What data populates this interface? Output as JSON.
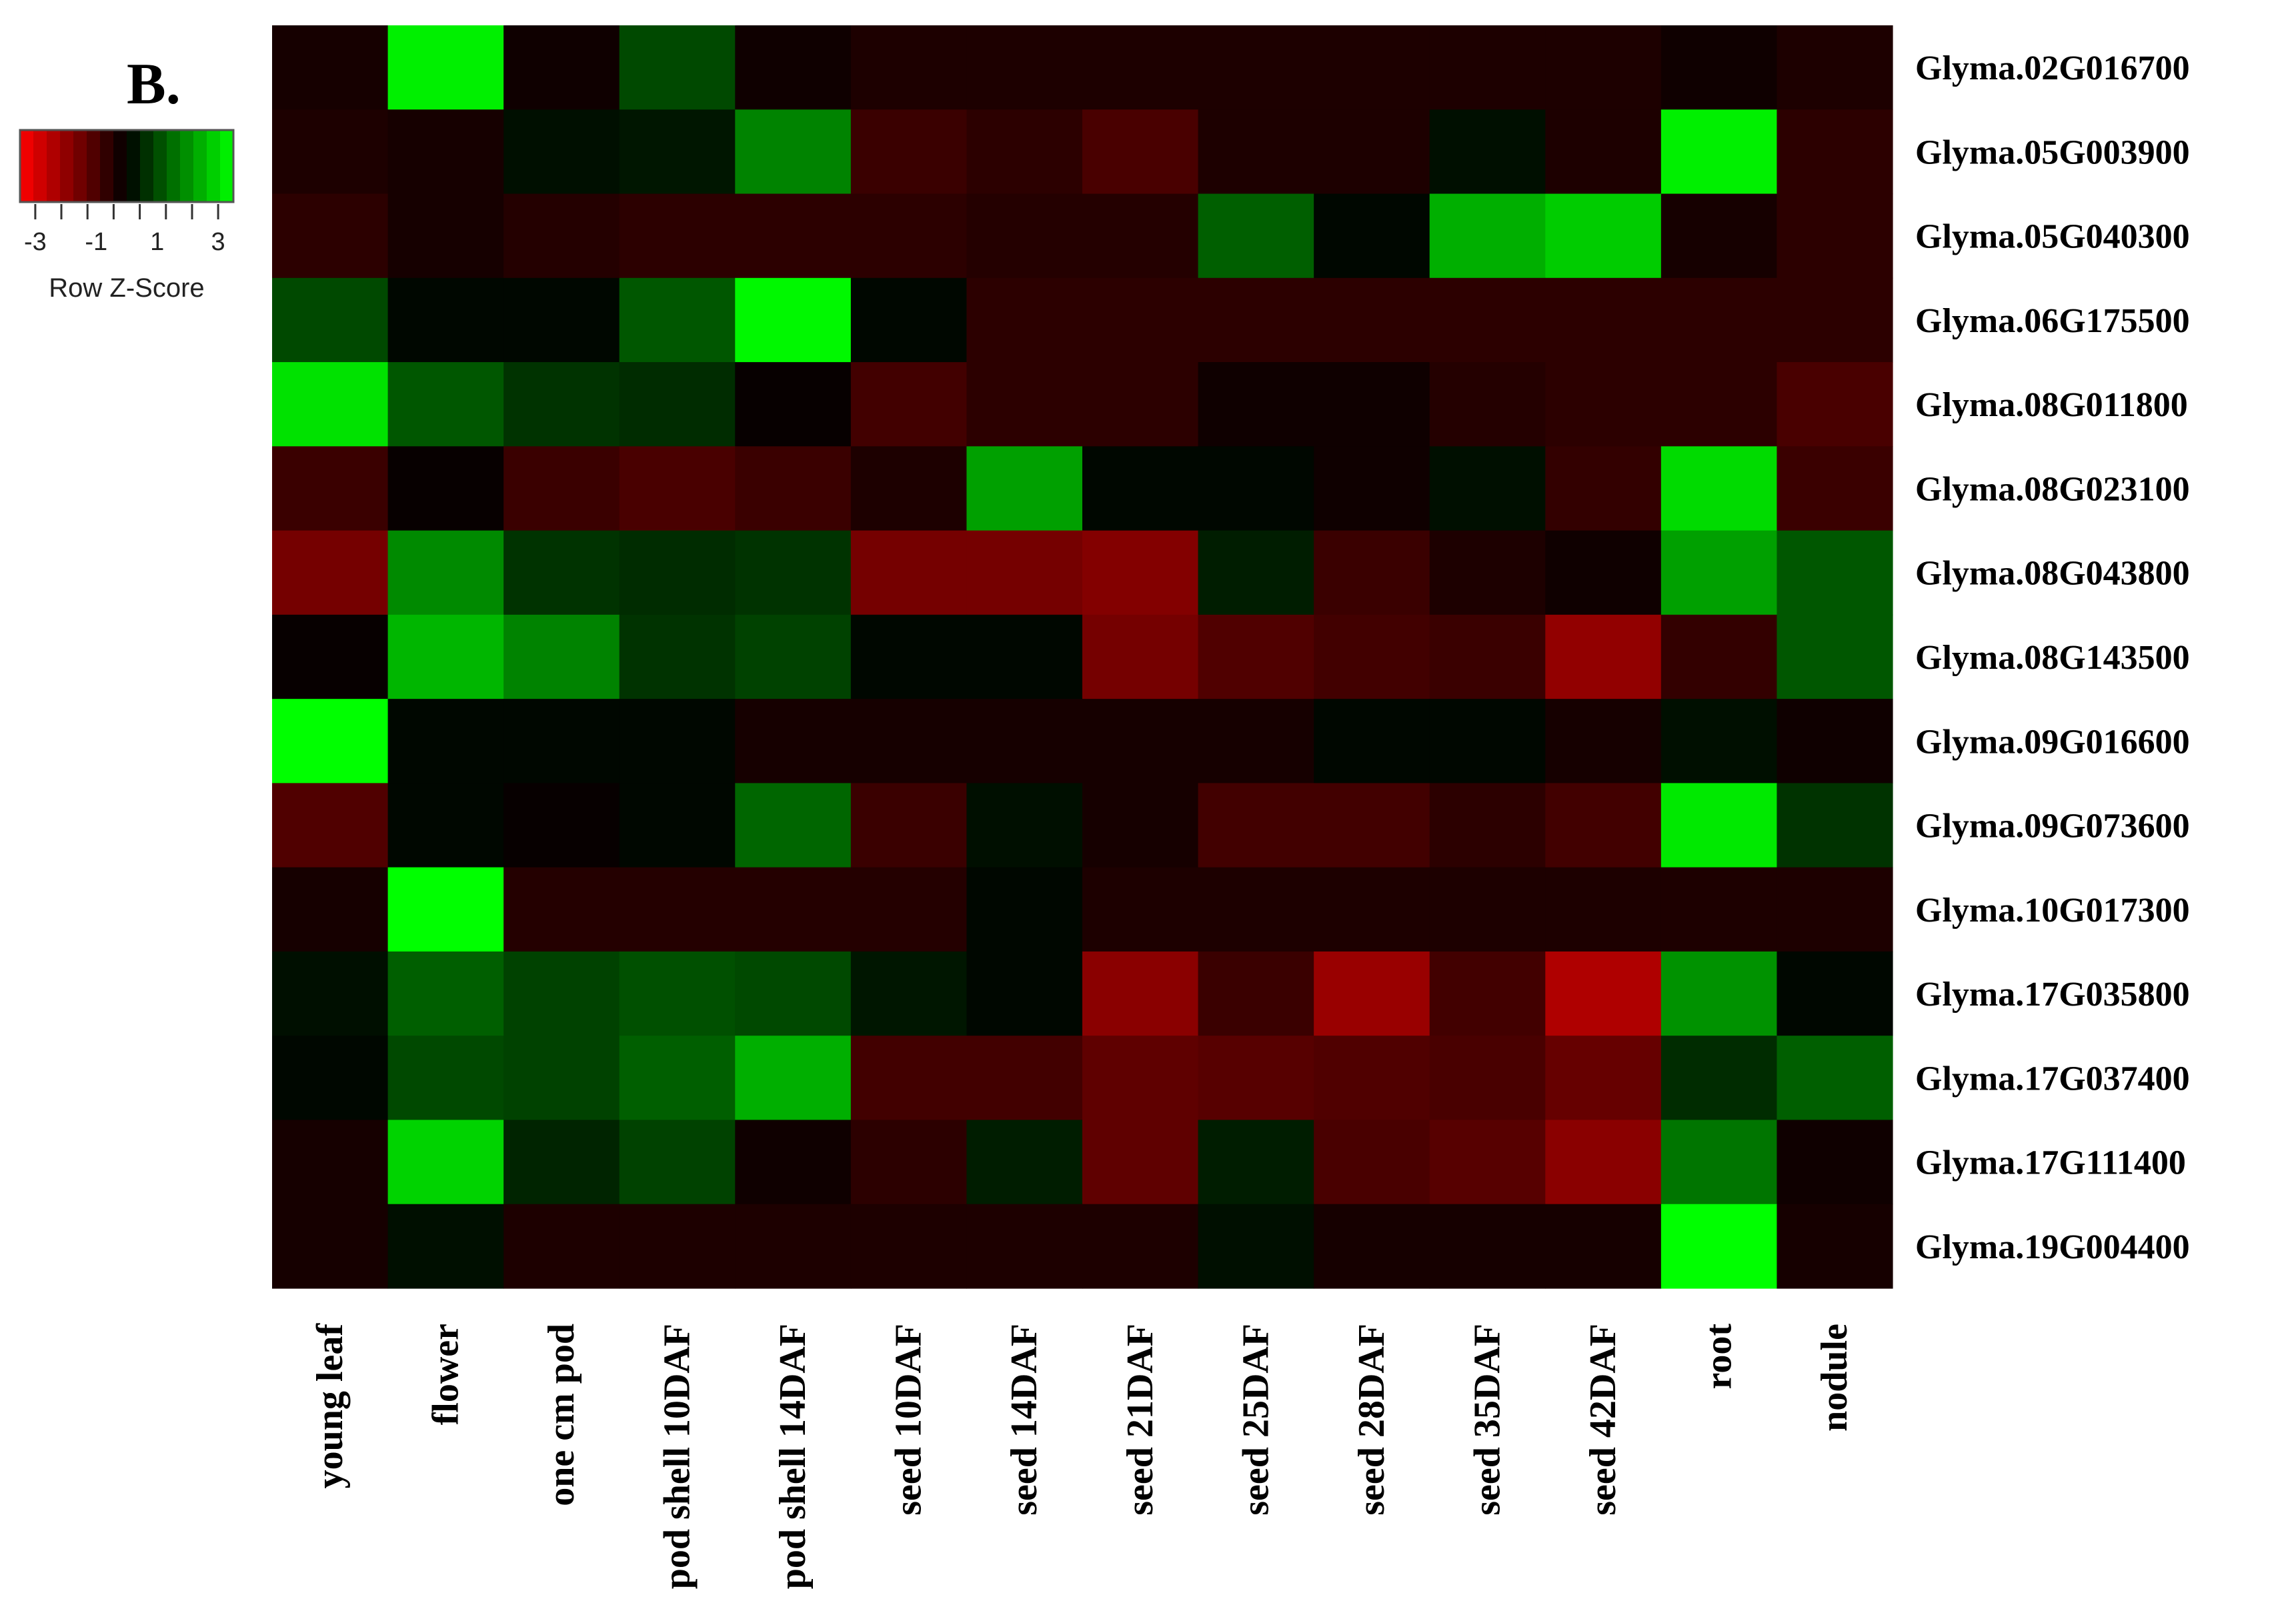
{
  "panel_label": "B.",
  "color_key": {
    "title": "Row Z-Score",
    "tick_labels": [
      "-3",
      "-1",
      "1",
      "3"
    ],
    "tick_values": [
      -3,
      -1,
      1,
      3
    ],
    "range": [
      -3.5,
      3.5
    ],
    "low_color": "#ff0000",
    "mid_color": "#000000",
    "high_color": "#00ff00"
  },
  "chart_data": {
    "type": "heatmap",
    "title": "",
    "xlabel": "",
    "ylabel": "",
    "x": [
      "young leaf",
      "flower",
      "one cm pod",
      "pod shell 10DAF",
      "pod shell 14DAF",
      "seed 10DAF",
      "seed 14DAF",
      "seed 21DAF",
      "seed 25DAF",
      "seed 28DAF",
      "seed 35DAF",
      "seed 42DAF",
      "root",
      "nodule"
    ],
    "y": [
      "Glyma.02G016700",
      "Glyma.05G003900",
      "Glyma.05G040300",
      "Glyma.06G175500",
      "Glyma.08G011800",
      "Glyma.08G023100",
      "Glyma.08G043800",
      "Glyma.08G143500",
      "Glyma.09G016600",
      "Glyma.09G073600",
      "Glyma.10G017300",
      "Glyma.17G035800",
      "Glyma.17G037400",
      "Glyma.17G111400",
      "Glyma.19G004400"
    ],
    "values": [
      [
        -0.3,
        3.3,
        -0.2,
        1.0,
        -0.2,
        -0.4,
        -0.4,
        -0.4,
        -0.4,
        -0.4,
        -0.4,
        -0.4,
        -0.2,
        -0.4
      ],
      [
        -0.4,
        -0.3,
        0.2,
        0.3,
        1.8,
        -0.8,
        -0.6,
        -1.0,
        -0.4,
        -0.4,
        0.2,
        -0.4,
        3.3,
        -0.6
      ],
      [
        -0.6,
        -0.3,
        -0.5,
        -0.6,
        -0.6,
        -0.6,
        -0.5,
        -0.5,
        1.3,
        0.1,
        2.4,
        2.8,
        -0.3,
        -0.6
      ],
      [
        1.0,
        0.1,
        0.1,
        1.2,
        3.4,
        0.1,
        -0.6,
        -0.6,
        -0.6,
        -0.6,
        -0.6,
        -0.6,
        -0.6,
        -0.6
      ],
      [
        3.1,
        1.2,
        0.7,
        0.6,
        -0.1,
        -0.9,
        -0.6,
        -0.6,
        -0.2,
        -0.2,
        -0.5,
        -0.6,
        -0.6,
        -1.0
      ],
      [
        -0.8,
        -0.1,
        -0.8,
        -1.0,
        -0.8,
        -0.4,
        2.2,
        0.1,
        0.1,
        -0.2,
        0.2,
        -0.7,
        3.0,
        -0.8
      ],
      [
        -1.6,
        1.9,
        0.7,
        0.6,
        0.7,
        -1.6,
        -1.6,
        -1.8,
        0.4,
        -0.8,
        -0.4,
        -0.2,
        2.2,
        1.2
      ],
      [
        -0.1,
        2.5,
        1.8,
        0.7,
        0.9,
        0.1,
        0.1,
        -1.6,
        -1.1,
        -0.9,
        -0.8,
        -2.0,
        -0.7,
        1.2
      ],
      [
        3.5,
        0.1,
        0.1,
        0.1,
        -0.3,
        -0.3,
        -0.3,
        -0.3,
        -0.3,
        0.1,
        0.1,
        -0.3,
        0.2,
        -0.2
      ],
      [
        -1.1,
        0.1,
        -0.1,
        0.1,
        1.4,
        -0.8,
        0.2,
        -0.3,
        -0.9,
        -0.9,
        -0.6,
        -0.9,
        3.2,
        0.7
      ],
      [
        -0.3,
        3.5,
        -0.5,
        -0.5,
        -0.5,
        -0.5,
        0.1,
        -0.4,
        -0.4,
        -0.4,
        -0.4,
        -0.4,
        -0.4,
        -0.4
      ],
      [
        0.2,
        1.3,
        0.9,
        1.1,
        1.0,
        0.3,
        0.1,
        -1.9,
        -0.8,
        -2.1,
        -0.9,
        -2.4,
        2.0,
        0.1
      ],
      [
        0.1,
        1.0,
        0.9,
        1.3,
        2.4,
        -0.9,
        -0.9,
        -1.3,
        -1.2,
        -1.1,
        -1.0,
        -1.4,
        0.6,
        1.3
      ],
      [
        -0.3,
        2.9,
        0.5,
        0.9,
        -0.2,
        -0.6,
        0.4,
        -1.3,
        0.4,
        -1.0,
        -1.2,
        -1.9,
        1.6,
        -0.2
      ],
      [
        -0.3,
        0.2,
        -0.4,
        -0.4,
        -0.4,
        -0.4,
        -0.4,
        -0.4,
        0.2,
        -0.3,
        -0.3,
        -0.3,
        3.5,
        -0.3
      ]
    ]
  }
}
